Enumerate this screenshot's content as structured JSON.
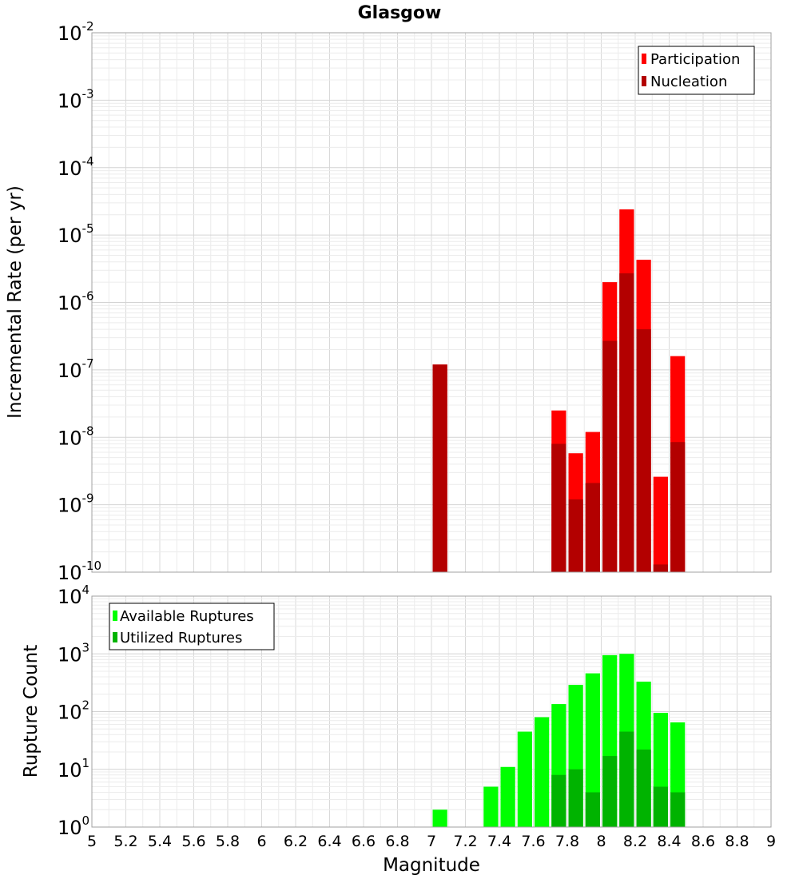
{
  "chart_data": [
    {
      "type": "bar",
      "title": "Glasgow",
      "ylabel": "Incremental Rate (per yr)",
      "xlabel": "",
      "y_scale": "log",
      "ylim": [
        1e-10,
        0.01
      ],
      "xlim": [
        5,
        9
      ],
      "grid": true,
      "legend_position": "top-right",
      "bin_width": 0.1,
      "series": [
        {
          "name": "Participation",
          "color": "#ff0000",
          "x": [
            7.05,
            7.75,
            7.85,
            7.95,
            8.05,
            8.15,
            8.25,
            8.35,
            8.45
          ],
          "values": [
            1.2e-07,
            2.5e-08,
            5.8e-09,
            1.2e-08,
            2e-06,
            2.4e-05,
            4.3e-06,
            2.6e-09,
            1.6e-07
          ]
        },
        {
          "name": "Nucleation",
          "color": "#b30000",
          "x": [
            7.05,
            7.75,
            7.85,
            7.95,
            8.05,
            8.15,
            8.25,
            8.35,
            8.45
          ],
          "values": [
            1.2e-07,
            8e-09,
            1.2e-09,
            2.1e-09,
            2.7e-07,
            2.7e-06,
            4e-07,
            1.3e-10,
            8.5e-09
          ]
        }
      ]
    },
    {
      "type": "bar",
      "title": "",
      "ylabel": "Rupture Count",
      "xlabel": "Magnitude",
      "y_scale": "log",
      "ylim": [
        1,
        10000
      ],
      "xlim": [
        5,
        9
      ],
      "grid": true,
      "legend_position": "top-left",
      "bin_width": 0.1,
      "x_ticks": [
        "5",
        "5.2",
        "5.4",
        "5.6",
        "5.8",
        "6",
        "6.2",
        "6.4",
        "6.6",
        "6.8",
        "7",
        "7.2",
        "7.4",
        "7.6",
        "7.8",
        "8",
        "8.2",
        "8.4",
        "8.6",
        "8.8",
        "9"
      ],
      "series": [
        {
          "name": "Available Ruptures",
          "color": "#00ff00",
          "x": [
            7.05,
            7.25,
            7.35,
            7.45,
            7.55,
            7.65,
            7.75,
            7.85,
            7.95,
            8.05,
            8.15,
            8.25,
            8.35,
            8.45,
            8.55
          ],
          "values": [
            2,
            1,
            5,
            11,
            45,
            80,
            135,
            290,
            460,
            950,
            1000,
            330,
            95,
            65,
            1
          ]
        },
        {
          "name": "Utilized Ruptures",
          "color": "#00b300",
          "x": [
            7.05,
            7.75,
            7.85,
            7.95,
            8.05,
            8.15,
            8.25,
            8.35,
            8.45
          ],
          "values": [
            1,
            8,
            10,
            4,
            17,
            45,
            22,
            5,
            4
          ]
        }
      ]
    }
  ],
  "y_exponents_top": [
    "-2",
    "-3",
    "-4",
    "-5",
    "-6",
    "-7",
    "-8",
    "-9",
    "-10"
  ],
  "y_exponents_bottom": [
    "4",
    "3",
    "2",
    "1",
    "0"
  ],
  "y_base": "10"
}
